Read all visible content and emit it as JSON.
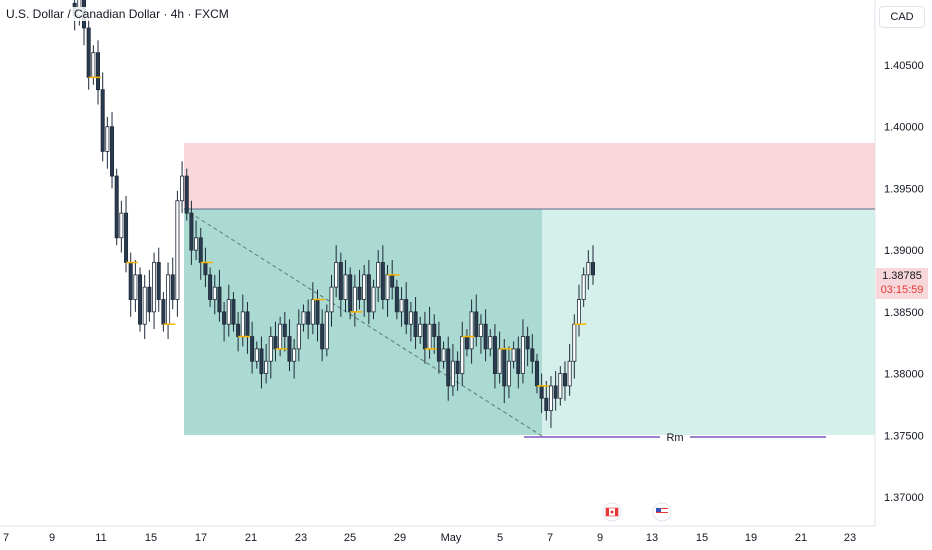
{
  "header": {
    "symbol_title": "U.S. Dollar / Canadian Dollar · 4h · FXCM"
  },
  "axis": {
    "currency": "CAD",
    "price_labels": [
      "1.40500",
      "1.40000",
      "1.39500",
      "1.39000",
      "1.38500",
      "1.38000",
      "1.37500",
      "1.37000"
    ],
    "date_labels": [
      "7",
      "9",
      "11",
      "15",
      "17",
      "21",
      "23",
      "25",
      "29",
      "May",
      "5",
      "7",
      "9",
      "13",
      "15",
      "19",
      "21",
      "23"
    ]
  },
  "current_price": {
    "value": "1.38785",
    "countdown": "03:15:59"
  },
  "annotation": {
    "label": "Rm"
  },
  "event_icons": [
    "canada-flag-icon",
    "us-flag-icon"
  ],
  "colors": {
    "bull_candle": "#2a3a4f",
    "stop_zone": "#f7c5c9",
    "target_zone_dark": "#a5d8cf",
    "target_zone_light": "#d3eee9",
    "marker": "#f5b400",
    "rm_line": "#7e57c2",
    "price_tag": "#f8d7da"
  }
}
